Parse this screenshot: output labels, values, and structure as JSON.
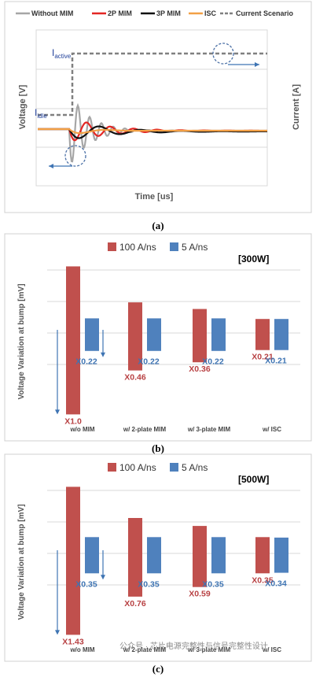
{
  "panel_a": {
    "caption": "(a)",
    "legend": [
      {
        "name": "Without MIM",
        "color": "#a6a6a6",
        "dash": false
      },
      {
        "name": "2P MIM",
        "color": "#e32624",
        "dash": false
      },
      {
        "name": "3P MIM",
        "color": "#111111",
        "dash": false
      },
      {
        "name": "ISC",
        "color": "#f2a045",
        "dash": false
      },
      {
        "name": "Current Scenario",
        "color": "#808080",
        "dash": true
      }
    ],
    "ylabel_left": "Voltage [V]",
    "ylabel_right": "Current [A]",
    "xlabel": "Time [us]",
    "label_active_main": "I",
    "label_active_sub": "active",
    "label_idle_main": "I",
    "label_idle_sub": "idle"
  },
  "chart_data": [
    {
      "type": "bar",
      "caption": "(b)",
      "power_label": "[300W]",
      "ylabel": "Voltage Variation at bump [mV]",
      "categories": [
        "w/o MIM",
        "w/ 2-plate MIM",
        "w/ 3-plate MIM",
        "w/ ISC"
      ],
      "series": [
        {
          "name": "100 A/ns",
          "color": "#c0504d",
          "values": [
            1.0,
            0.46,
            0.36,
            0.21
          ],
          "labels": [
            "X1.0",
            "X0.46",
            "X0.36",
            "X0.21"
          ]
        },
        {
          "name": "5 A/ns",
          "color": "#4f81bd",
          "values": [
            0.22,
            0.22,
            0.22,
            0.21
          ],
          "labels": [
            "X0.22",
            "X0.22",
            "X0.22",
            "X0.21"
          ]
        }
      ]
    },
    {
      "type": "bar",
      "caption": "(c)",
      "power_label": "[500W]",
      "ylabel": "Voltage Variation at bump [mV]",
      "categories": [
        "w/o MIM",
        "w/ 2-plate MIM",
        "w/ 3-plate MIM",
        "w/ ISC"
      ],
      "series": [
        {
          "name": "100 A/ns",
          "color": "#c0504d",
          "values": [
            1.43,
            0.76,
            0.59,
            0.35
          ],
          "labels": [
            "X1.43",
            "X0.76",
            "X0.59",
            "X0.35"
          ]
        },
        {
          "name": "5 A/ns",
          "color": "#4f81bd",
          "values": [
            0.35,
            0.35,
            0.35,
            0.34
          ],
          "labels": [
            "X0.35",
            "X0.35",
            "X0.35",
            "X0.34"
          ]
        }
      ]
    }
  ],
  "watermark": "公众号 · 芯片电源完整性与信号完整性设计"
}
